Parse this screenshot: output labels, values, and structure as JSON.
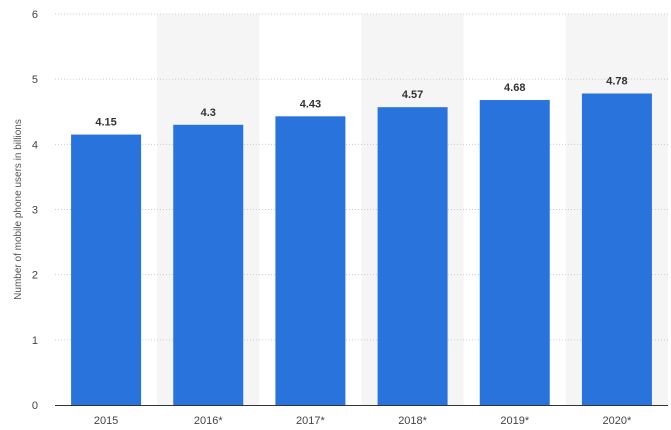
{
  "chart_data": {
    "type": "bar",
    "categories": [
      "2015",
      "2016*",
      "2017*",
      "2018*",
      "2019*",
      "2020*"
    ],
    "values": [
      4.15,
      4.3,
      4.43,
      4.57,
      4.68,
      4.78
    ],
    "value_labels": [
      "4.15",
      "4.3",
      "4.43",
      "4.57",
      "4.68",
      "4.78"
    ],
    "title": "",
    "xlabel": "",
    "ylabel": "Number of mobile phone users in billions",
    "ylim": [
      0,
      6
    ],
    "yticks": [
      0,
      1,
      2,
      3,
      4,
      5,
      6
    ],
    "ytick_labels": [
      "0",
      "1",
      "2",
      "3",
      "4",
      "5",
      "6"
    ],
    "grid": true,
    "alternating_column_shading": true,
    "legend": "none",
    "colors": {
      "bar": "#2874dc",
      "shade": "#f5f5f5",
      "grid": "#cccccc"
    }
  }
}
